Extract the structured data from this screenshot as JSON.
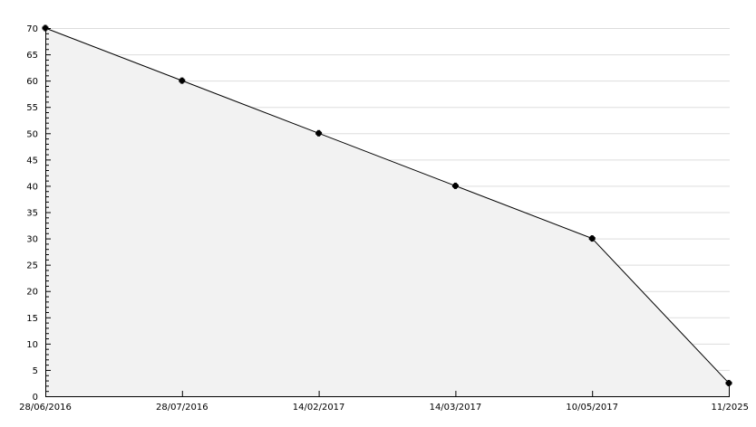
{
  "chart_data": {
    "type": "area",
    "title": "",
    "xlabel": "",
    "ylabel": "",
    "categories": [
      "28/06/2016",
      "28/07/2016",
      "14/02/2017",
      "14/03/2017",
      "10/05/2017",
      "11/2025"
    ],
    "values": [
      70,
      60,
      50,
      40,
      30,
      2.5
    ],
    "ylim": [
      0,
      70
    ],
    "y_major_step": 5,
    "y_minor_step": 1,
    "grid": "horizontal",
    "legend": "none",
    "colors": {
      "fill": "#f2f2f2",
      "line": "#000000",
      "grid": "#dddddd",
      "marker": "#000000"
    }
  }
}
